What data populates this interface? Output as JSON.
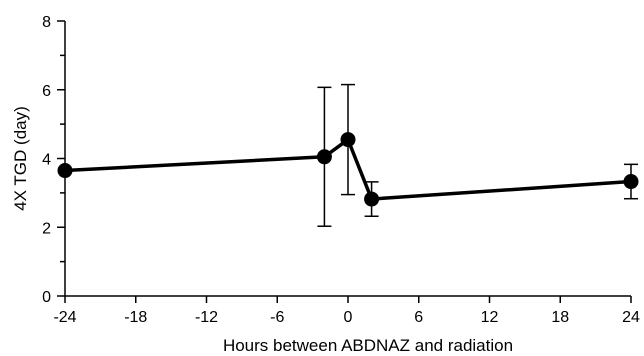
{
  "chart_data": {
    "type": "line",
    "title": "",
    "xlabel": "Hours between ABDNAZ and radiation",
    "ylabel": "4X TGD (day)",
    "xlim": [
      -24,
      24
    ],
    "ylim": [
      0,
      8
    ],
    "xticks": [
      -24,
      -18,
      -12,
      -6,
      0,
      6,
      12,
      18,
      24
    ],
    "yticks": [
      0,
      2,
      4,
      6,
      8
    ],
    "grid": false,
    "legend": "none",
    "series": [
      {
        "x": [
          -24,
          -2,
          0,
          2,
          24
        ],
        "y": [
          3.65,
          4.05,
          4.55,
          2.82,
          3.33
        ],
        "error": [
          null,
          2.02,
          1.6,
          0.5,
          0.5
        ]
      }
    ],
    "colors": {
      "line": "#000000",
      "marker": "#000000"
    }
  }
}
